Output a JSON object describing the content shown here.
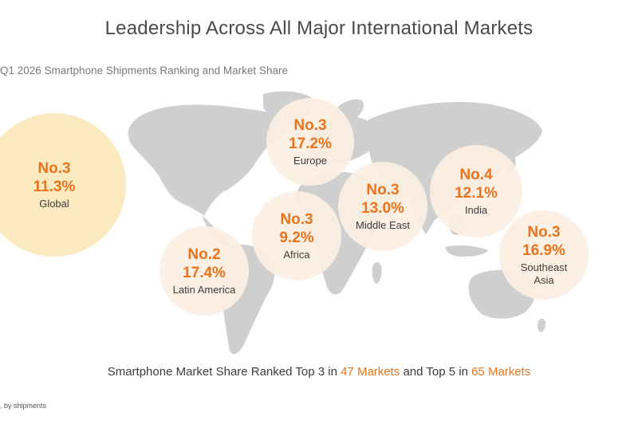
{
  "header": {
    "title": "Leadership Across All Major International Markets",
    "subtitle": "Q1 2026 Smartphone Shipments Ranking and Market Share"
  },
  "colors": {
    "accent": "#e9741b",
    "bubble": "#fcefe2",
    "global_bubble": "#fbeac0",
    "map": "#cfcfcf"
  },
  "markets": [
    {
      "rank": "No.3",
      "share": "11.3%",
      "region": "Global"
    },
    {
      "rank": "No.3",
      "share": "17.2%",
      "region": "Europe"
    },
    {
      "rank": "No.3",
      "share": "13.0%",
      "region": "Middle East"
    },
    {
      "rank": "No.4",
      "share": "12.1%",
      "region": "India"
    },
    {
      "rank": "No.3",
      "share": "9.2%",
      "region": "Africa"
    },
    {
      "rank": "No.2",
      "share": "17.4%",
      "region": "Latin America"
    },
    {
      "rank": "No.3",
      "share": "16.9%",
      "region": "Southeast Asia"
    }
  ],
  "summary": {
    "prefix": "Smartphone Market Share Ranked Top 3 in ",
    "top3_count": "47 Markets",
    "middle": " and Top 5 in ",
    "top5_count": "65 Markets"
  },
  "footnote": ", by shipments"
}
